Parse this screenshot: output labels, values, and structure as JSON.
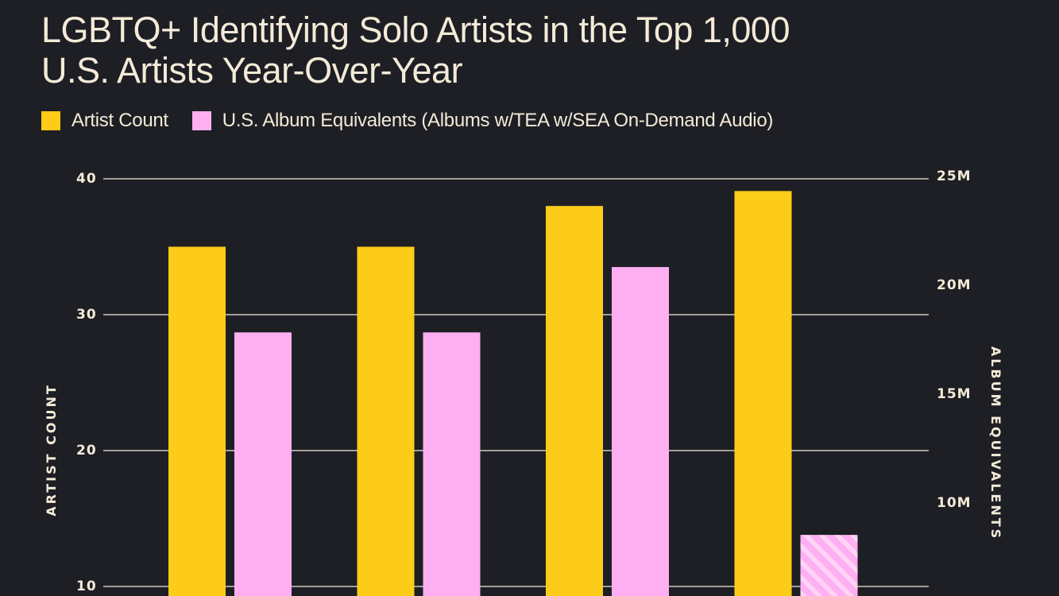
{
  "title_lines": [
    "LGBTQ+ Identifying Solo Artists in the Top 1,000",
    "U.S. Artists Year-Over-Year"
  ],
  "legend": [
    {
      "label": "Artist Count",
      "color": "#fdcc19"
    },
    {
      "label": "U.S. Album Equivalents (Albums w/TEA w/SEA On-Demand Audio)",
      "color": "#fdaff2"
    }
  ],
  "chart_data": {
    "type": "bar",
    "title": "LGBTQ+ Identifying Solo Artists in the Top 1,000 U.S. Artists Year-Over-Year",
    "ylabel": "ARTIST COUNT",
    "y2label": "ALBUM EQUIVALENTS",
    "ylim": [
      0,
      40
    ],
    "y2lim": [
      0,
      25000000
    ],
    "yticks": [
      {
        "value": 40,
        "label": "40"
      },
      {
        "value": 30,
        "label": "30"
      },
      {
        "value": 20,
        "label": "20"
      },
      {
        "value": 10,
        "label": "10"
      }
    ],
    "y2ticks": [
      {
        "value": 25000000,
        "label": "25M"
      },
      {
        "value": 20000000,
        "label": "20M"
      },
      {
        "value": 15000000,
        "label": "15M"
      },
      {
        "value": 10000000,
        "label": "10M"
      }
    ],
    "grid": true,
    "legend_position": "top-left",
    "series": [
      {
        "name": "Artist Count",
        "axis": "left",
        "color": "#fdcc19",
        "values": [
          35,
          35,
          38,
          39.1
        ]
      },
      {
        "name": "U.S. Album Equivalents (Albums w/TEA w/SEA On-Demand Audio)",
        "axis": "right",
        "color": "#fdaff2",
        "values": [
          17800000,
          17800000,
          20800000,
          8500000
        ],
        "hatched_last": true
      }
    ]
  }
}
